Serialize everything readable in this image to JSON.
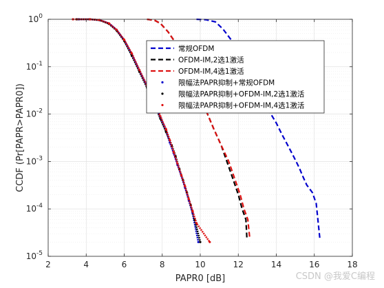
{
  "chart_data": {
    "type": "line",
    "xlabel": "PAPR0 [dB]",
    "ylabel": "CCDF (Pr[PAPR>PAPR0])",
    "xlim": [
      2,
      18
    ],
    "ylim": [
      1e-05,
      1
    ],
    "yscale": "log",
    "xticks": [
      "2",
      "4",
      "6",
      "8",
      "10",
      "12",
      "14",
      "16",
      "18"
    ],
    "yticks": [
      "10^{-5}",
      "10^{-4}",
      "10^{-3}",
      "10^{-2}",
      "10^{-1}",
      "10^{0}"
    ],
    "grid": true,
    "legend_position": "top-right",
    "series": [
      {
        "name": "常规OFDM",
        "color": "#0000cc",
        "style": "dashed",
        "points": [
          [
            9.8,
            1.0
          ],
          [
            10.3,
            0.98
          ],
          [
            10.8,
            0.88
          ],
          [
            11.2,
            0.62
          ],
          [
            11.6,
            0.38
          ],
          [
            12.0,
            0.2
          ],
          [
            12.4,
            0.1
          ],
          [
            12.8,
            0.052
          ],
          [
            13.2,
            0.025
          ],
          [
            13.6,
            0.012
          ],
          [
            14.0,
            0.0065
          ],
          [
            14.3,
            0.0037
          ],
          [
            14.6,
            0.0022
          ],
          [
            14.9,
            0.0013
          ],
          [
            15.2,
            0.00075
          ],
          [
            15.4,
            0.00048
          ],
          [
            15.6,
            0.00032
          ],
          [
            15.9,
            0.00022
          ],
          [
            16.1,
            0.00013
          ],
          [
            16.3,
            2.2e-05
          ]
        ]
      },
      {
        "name": "OFDM-IM,2选1激活",
        "color": "#000000",
        "style": "dashed",
        "points": [
          [
            7.2,
            1.0
          ],
          [
            7.6,
            0.95
          ],
          [
            7.9,
            0.82
          ],
          [
            8.3,
            0.55
          ],
          [
            8.7,
            0.32
          ],
          [
            9.1,
            0.15
          ],
          [
            9.5,
            0.068
          ],
          [
            9.9,
            0.03
          ],
          [
            10.3,
            0.012
          ],
          [
            10.7,
            0.005
          ],
          [
            11.1,
            0.0022
          ],
          [
            11.4,
            0.001
          ],
          [
            11.7,
            0.00045
          ],
          [
            12.0,
            0.0002
          ],
          [
            12.2,
            0.0001
          ],
          [
            12.4,
            6e-05
          ],
          [
            12.45,
            2.5e-05
          ]
        ]
      },
      {
        "name": "OFDM-IM,4选1激活",
        "color": "#dd1111",
        "style": "dashed",
        "points": [
          [
            7.2,
            1.0
          ],
          [
            7.6,
            0.95
          ],
          [
            7.9,
            0.82
          ],
          [
            8.3,
            0.55
          ],
          [
            8.7,
            0.32
          ],
          [
            9.1,
            0.15
          ],
          [
            9.5,
            0.068
          ],
          [
            9.9,
            0.03
          ],
          [
            10.3,
            0.012
          ],
          [
            10.7,
            0.005
          ],
          [
            11.1,
            0.0022
          ],
          [
            11.5,
            0.001
          ],
          [
            11.8,
            0.00045
          ],
          [
            12.1,
            0.0002
          ],
          [
            12.3,
            0.0001
          ],
          [
            12.5,
            6e-05
          ],
          [
            12.6,
            2.5e-05
          ]
        ]
      },
      {
        "name": "限幅法PAPR抑制+常规OFDM",
        "color": "#0000cc",
        "style": "dots",
        "points": [
          [
            3.6,
            1.0
          ],
          [
            4.2,
            1.0
          ],
          [
            4.7,
            0.96
          ],
          [
            5.2,
            0.82
          ],
          [
            5.6,
            0.6
          ],
          [
            6.0,
            0.36
          ],
          [
            6.4,
            0.18
          ],
          [
            6.8,
            0.082
          ],
          [
            7.2,
            0.038
          ],
          [
            7.6,
            0.017
          ],
          [
            7.9,
            0.0085
          ],
          [
            8.2,
            0.0045
          ],
          [
            8.4,
            0.0025
          ],
          [
            8.6,
            0.0015
          ],
          [
            8.8,
            0.00085
          ],
          [
            9.0,
            0.0005
          ],
          [
            9.2,
            0.00028
          ],
          [
            9.4,
            0.00015
          ],
          [
            9.6,
            8e-05
          ],
          [
            9.9,
            2e-05
          ]
        ]
      },
      {
        "name": "限幅法PAPR抑制+OFDM-IM,2选1激活",
        "color": "#000000",
        "style": "dots",
        "points": [
          [
            3.5,
            1.0
          ],
          [
            4.2,
            1.0
          ],
          [
            4.7,
            0.96
          ],
          [
            5.2,
            0.8
          ],
          [
            5.6,
            0.58
          ],
          [
            6.0,
            0.35
          ],
          [
            6.4,
            0.17
          ],
          [
            6.8,
            0.078
          ],
          [
            7.2,
            0.036
          ],
          [
            7.6,
            0.016
          ],
          [
            7.9,
            0.008
          ],
          [
            8.2,
            0.0042
          ],
          [
            8.5,
            0.0022
          ],
          [
            8.7,
            0.0013
          ],
          [
            8.9,
            0.0007
          ],
          [
            9.1,
            0.0004
          ],
          [
            9.3,
            0.00022
          ],
          [
            9.5,
            0.00012
          ],
          [
            9.7,
            6e-05
          ],
          [
            10.0,
            2e-05
          ]
        ]
      },
      {
        "name": "限幅法PAPR抑制+OFDM-IM,4选1激活",
        "color": "#dd1111",
        "style": "dots",
        "points": [
          [
            3.3,
            1.0
          ],
          [
            4.2,
            1.0
          ],
          [
            4.7,
            0.97
          ],
          [
            5.2,
            0.82
          ],
          [
            5.6,
            0.6
          ],
          [
            6.0,
            0.37
          ],
          [
            6.4,
            0.19
          ],
          [
            6.8,
            0.085
          ],
          [
            7.2,
            0.04
          ],
          [
            7.6,
            0.018
          ],
          [
            7.9,
            0.009
          ],
          [
            8.2,
            0.0048
          ],
          [
            8.4,
            0.0028
          ],
          [
            8.6,
            0.0016
          ],
          [
            8.8,
            0.0009
          ],
          [
            9.0,
            0.00052
          ],
          [
            9.2,
            0.0003
          ],
          [
            9.4,
            0.00016
          ],
          [
            9.6,
            9e-05
          ],
          [
            9.8,
            5e-05
          ],
          [
            10.5,
            2e-05
          ]
        ]
      }
    ]
  },
  "watermark": "CSDN @我爱C编程"
}
